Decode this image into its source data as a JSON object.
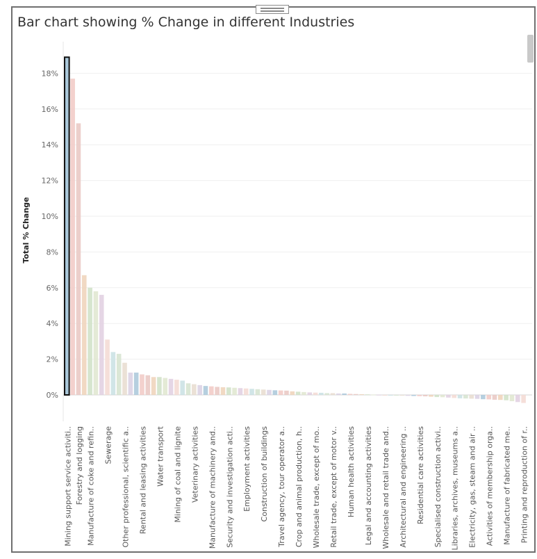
{
  "window": {
    "title": "Bar chart showing % Change in different Industries"
  },
  "chart_data": {
    "type": "bar",
    "title": "Bar chart showing % Change in different Industries",
    "xlabel": "",
    "ylabel": "Total % Change",
    "ylim": [
      -0.6,
      19.2
    ],
    "yticks": [
      "0%",
      "2%",
      "4%",
      "6%",
      "8%",
      "10%",
      "12%",
      "14%",
      "16%",
      "18%"
    ],
    "grid": true,
    "selected_index": 0,
    "categories": [
      "Mining support service activiti..",
      "",
      "Forestry and logging",
      "",
      "Manufacture of coke and refin..",
      "",
      "",
      "Sewerage",
      "",
      "",
      "Other professional, scientific a..",
      "",
      "",
      "Rental and leasing activities",
      "",
      "",
      "Water transport",
      "",
      "",
      "Mining of coal and lignite",
      "",
      "",
      "Veterinary activities",
      "",
      "",
      "Manufacture of machinery and..",
      "",
      "",
      "Security and investigation acti..",
      "",
      "",
      "Employment activities",
      "",
      "",
      "Construction of buildings",
      "",
      "",
      "Travel agency, tour operator a..",
      "",
      "",
      "Crop and animal production, h..",
      "",
      "",
      "Wholesale trade, except of mo..",
      "",
      "",
      "Retail trade, except of motor v..",
      "",
      "",
      "Human health activities",
      "",
      "",
      "Legal and accounting activities",
      "",
      "",
      "Wholesale and retail trade and..",
      "",
      "",
      "Architectural and engineering ..",
      "",
      "",
      "Residential care activities",
      "",
      "",
      "Specialised construction activi..",
      "",
      "",
      "Libraries, archives, museums a..",
      "",
      "",
      "Electricity, gas, steam and air ..",
      "",
      "",
      "Activities of membership orga..",
      "",
      "",
      "Manufacture of fabricated me..",
      "",
      "",
      "Printing and reproduction of r.."
    ],
    "values": [
      18.9,
      17.7,
      15.2,
      6.7,
      6.0,
      5.8,
      5.6,
      3.1,
      2.4,
      2.3,
      1.8,
      1.25,
      1.25,
      1.15,
      1.1,
      1.0,
      1.0,
      0.95,
      0.9,
      0.85,
      0.8,
      0.65,
      0.6,
      0.55,
      0.5,
      0.48,
      0.45,
      0.43,
      0.42,
      0.4,
      0.38,
      0.36,
      0.34,
      0.32,
      0.3,
      0.28,
      0.26,
      0.25,
      0.24,
      0.2,
      0.18,
      0.16,
      0.14,
      0.13,
      0.12,
      0.1,
      0.1,
      0.08,
      0.08,
      0.06,
      0.05,
      0.04,
      0.03,
      0.02,
      0.01,
      0.0,
      -0.02,
      -0.03,
      -0.04,
      -0.05,
      -0.06,
      -0.07,
      -0.08,
      -0.1,
      -0.12,
      -0.13,
      -0.15,
      -0.17,
      -0.19,
      -0.2,
      -0.21,
      -0.22,
      -0.24,
      -0.25,
      -0.27,
      -0.28,
      -0.3,
      -0.35,
      -0.4,
      -0.45
    ],
    "palette": [
      "#a9c7d9",
      "#f1c9c4",
      "#e9c7c2",
      "#eed2b8",
      "#cfe0c6",
      "#dfe6cf",
      "#e1cfe0",
      "#f3d9d2",
      "#c9e0e3",
      "#d5e3cf",
      "#e8dccf",
      "#d9d0e3"
    ],
    "selected_color": "#a9c7d9",
    "selected_outline": "#111111"
  }
}
